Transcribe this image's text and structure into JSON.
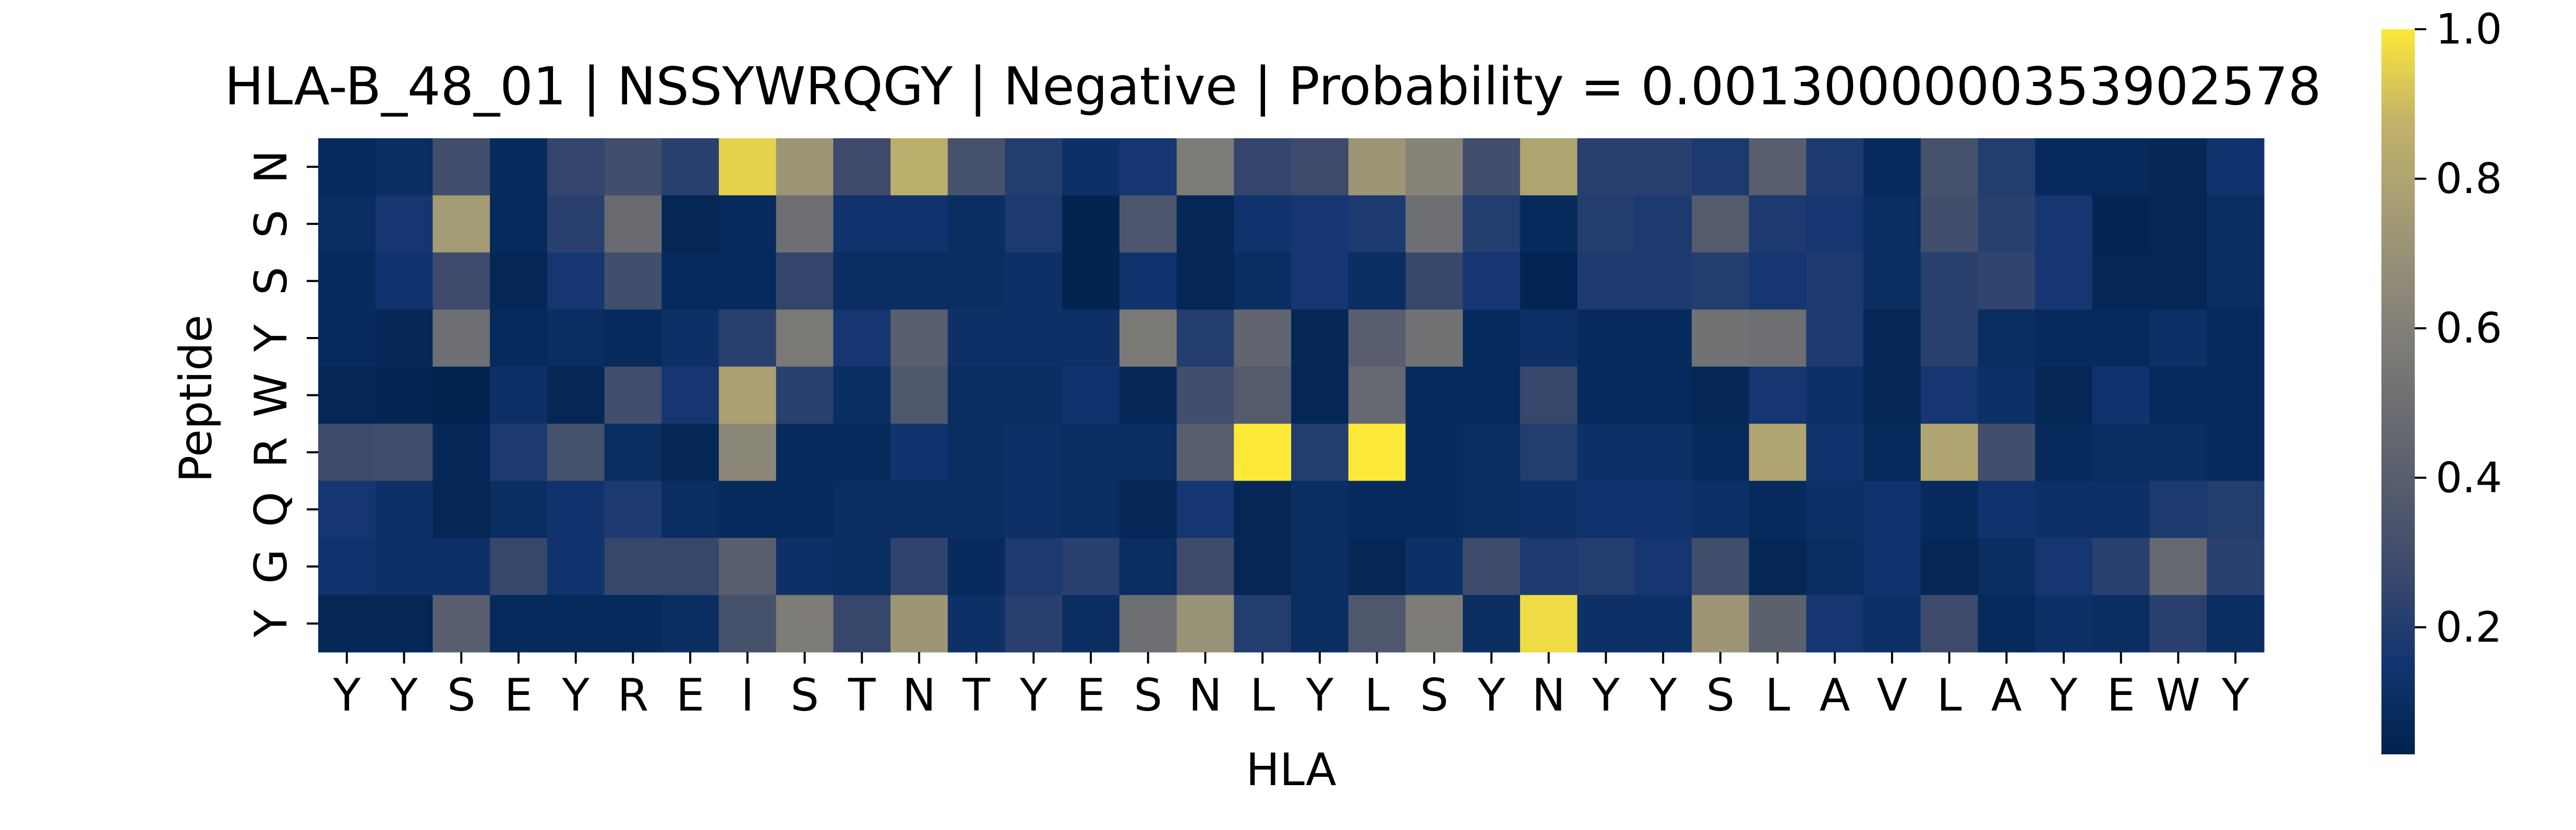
{
  "chart_data": {
    "type": "heatmap",
    "title": "HLA-B_48_01 | NSSYWRQGY | Negative | Probability = 0.0013000000353902578",
    "xlabel": "HLA",
    "ylabel": "Peptide",
    "x_tick_labels": [
      "Y",
      "Y",
      "S",
      "E",
      "Y",
      "R",
      "E",
      "I",
      "S",
      "T",
      "N",
      "T",
      "Y",
      "E",
      "S",
      "N",
      "L",
      "Y",
      "L",
      "S",
      "Y",
      "N",
      "Y",
      "Y",
      "S",
      "L",
      "A",
      "V",
      "L",
      "A",
      "Y",
      "E",
      "W",
      "Y"
    ],
    "y_tick_labels": [
      "N",
      "S",
      "S",
      "Y",
      "W",
      "R",
      "Q",
      "G",
      "Y"
    ],
    "colorbar": {
      "colormap": "cividis",
      "vmin": 0.03,
      "vmax": 1.0,
      "ticks": [
        0.2,
        0.4,
        0.6,
        0.8,
        1.0
      ],
      "tick_labels": [
        "0.2",
        "0.4",
        "0.6",
        "0.8",
        "1.0"
      ]
    },
    "values": [
      [
        0.08,
        0.1,
        0.3,
        0.08,
        0.25,
        0.3,
        0.22,
        0.95,
        0.72,
        0.28,
        0.85,
        0.32,
        0.2,
        0.12,
        0.16,
        0.58,
        0.25,
        0.28,
        0.72,
        0.62,
        0.3,
        0.8,
        0.22,
        0.22,
        0.18,
        0.4,
        0.18,
        0.08,
        0.32,
        0.2,
        0.08,
        0.08,
        0.06,
        0.14
      ],
      [
        0.1,
        0.16,
        0.75,
        0.08,
        0.22,
        0.48,
        0.06,
        0.08,
        0.5,
        0.14,
        0.14,
        0.1,
        0.18,
        0.04,
        0.35,
        0.06,
        0.14,
        0.16,
        0.18,
        0.5,
        0.2,
        0.08,
        0.2,
        0.18,
        0.38,
        0.18,
        0.16,
        0.1,
        0.3,
        0.22,
        0.16,
        0.05,
        0.06,
        0.1
      ],
      [
        0.08,
        0.14,
        0.28,
        0.06,
        0.16,
        0.3,
        0.08,
        0.08,
        0.25,
        0.1,
        0.1,
        0.1,
        0.12,
        0.04,
        0.14,
        0.06,
        0.1,
        0.16,
        0.1,
        0.26,
        0.16,
        0.05,
        0.18,
        0.18,
        0.2,
        0.16,
        0.18,
        0.1,
        0.22,
        0.24,
        0.16,
        0.06,
        0.06,
        0.1
      ],
      [
        0.08,
        0.07,
        0.5,
        0.08,
        0.1,
        0.08,
        0.12,
        0.22,
        0.56,
        0.16,
        0.4,
        0.12,
        0.12,
        0.12,
        0.56,
        0.2,
        0.44,
        0.06,
        0.4,
        0.52,
        0.08,
        0.12,
        0.08,
        0.08,
        0.52,
        0.5,
        0.18,
        0.06,
        0.22,
        0.1,
        0.08,
        0.08,
        0.12,
        0.08
      ],
      [
        0.06,
        0.05,
        0.04,
        0.12,
        0.06,
        0.3,
        0.16,
        0.78,
        0.22,
        0.1,
        0.36,
        0.1,
        0.1,
        0.14,
        0.06,
        0.3,
        0.38,
        0.06,
        0.46,
        0.08,
        0.08,
        0.26,
        0.08,
        0.08,
        0.06,
        0.16,
        0.12,
        0.06,
        0.16,
        0.12,
        0.06,
        0.14,
        0.08,
        0.08
      ],
      [
        0.28,
        0.3,
        0.07,
        0.18,
        0.32,
        0.1,
        0.06,
        0.64,
        0.08,
        0.08,
        0.14,
        0.1,
        0.12,
        0.1,
        0.1,
        0.4,
        1.0,
        0.2,
        1.0,
        0.08,
        0.1,
        0.2,
        0.12,
        0.12,
        0.08,
        0.8,
        0.14,
        0.08,
        0.8,
        0.3,
        0.08,
        0.1,
        0.1,
        0.08
      ],
      [
        0.16,
        0.12,
        0.06,
        0.1,
        0.14,
        0.18,
        0.1,
        0.08,
        0.08,
        0.1,
        0.1,
        0.1,
        0.12,
        0.1,
        0.06,
        0.16,
        0.06,
        0.1,
        0.08,
        0.08,
        0.1,
        0.12,
        0.14,
        0.14,
        0.12,
        0.08,
        0.12,
        0.14,
        0.08,
        0.14,
        0.12,
        0.12,
        0.18,
        0.2
      ],
      [
        0.14,
        0.12,
        0.12,
        0.26,
        0.14,
        0.26,
        0.26,
        0.4,
        0.12,
        0.1,
        0.24,
        0.08,
        0.18,
        0.22,
        0.1,
        0.28,
        0.06,
        0.1,
        0.06,
        0.12,
        0.28,
        0.18,
        0.2,
        0.16,
        0.3,
        0.06,
        0.1,
        0.14,
        0.06,
        0.1,
        0.16,
        0.22,
        0.46,
        0.22
      ],
      [
        0.06,
        0.06,
        0.4,
        0.08,
        0.08,
        0.08,
        0.1,
        0.32,
        0.58,
        0.26,
        0.72,
        0.12,
        0.22,
        0.1,
        0.5,
        0.7,
        0.2,
        0.1,
        0.36,
        0.58,
        0.1,
        0.97,
        0.12,
        0.12,
        0.72,
        0.42,
        0.16,
        0.12,
        0.28,
        0.08,
        0.12,
        0.1,
        0.22,
        0.1
      ]
    ]
  }
}
